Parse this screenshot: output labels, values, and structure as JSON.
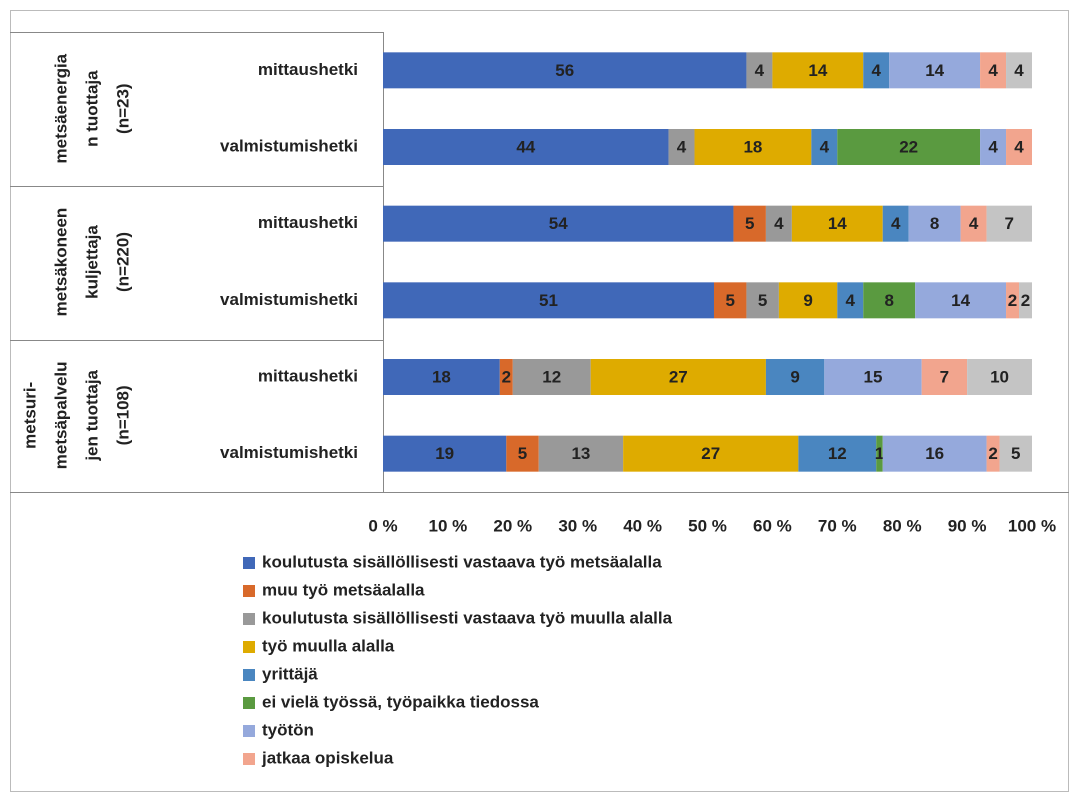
{
  "chart_data": {
    "type": "bar",
    "orientation": "horizontal",
    "stacked": "percent",
    "groups": [
      {
        "label": [
          "metsäenergia",
          "n tuottaja",
          "(n=23)"
        ]
      },
      {
        "label": [
          "metsäkoneen",
          "kuljettaja",
          "(n=220)"
        ]
      },
      {
        "label": [
          "metsuri-",
          "metsäpalvelu",
          "jen tuottaja",
          "(n=108)"
        ]
      }
    ],
    "categories": [
      "mittaushetki",
      "valmistumishetki",
      "mittaushetki",
      "valmistumishetki",
      "mittaushetki",
      "valmistumishetki"
    ],
    "series": [
      {
        "name": "koulutusta sisällöllisesti vastaava työ metsäalalla",
        "color": "#4068b8",
        "values": [
          56,
          44,
          54,
          51,
          18,
          19
        ]
      },
      {
        "name": "muu työ metsäalalla",
        "color": "#d8692a",
        "values": [
          null,
          null,
          5,
          5,
          2,
          5
        ]
      },
      {
        "name": "koulutusta sisällöllisesti vastaava työ muulla alalla",
        "color": "#999999",
        "values": [
          4,
          4,
          4,
          5,
          12,
          13
        ]
      },
      {
        "name": "työ muulla alalla",
        "color": "#deab00",
        "values": [
          14,
          18,
          14,
          9,
          27,
          27
        ]
      },
      {
        "name": "yrittäjä",
        "color": "#4a86c0",
        "values": [
          4,
          4,
          4,
          4,
          9,
          12
        ]
      },
      {
        "name": "ei vielä työssä, työpaikka tiedossa",
        "color": "#5a9a40",
        "values": [
          null,
          22,
          null,
          8,
          null,
          1
        ]
      },
      {
        "name": "työtön",
        "color": "#95a9dc",
        "values": [
          14,
          4,
          8,
          14,
          15,
          16
        ]
      },
      {
        "name": "jatkaa opiskelua",
        "color": "#f2a58e",
        "values": [
          4,
          4,
          4,
          2,
          7,
          2
        ]
      },
      {
        "color": "#c4c4c4",
        "values": [
          4,
          null,
          7,
          2,
          10,
          5
        ]
      }
    ],
    "xlim": [
      0,
      100
    ],
    "xticks": [
      {
        "value": 0,
        "label": "0 %"
      },
      {
        "value": 10,
        "label": "10 %"
      },
      {
        "value": 20,
        "label": "20 %"
      },
      {
        "value": 30,
        "label": "30 %"
      },
      {
        "value": 40,
        "label": "40 %"
      },
      {
        "value": 50,
        "label": "50 %"
      },
      {
        "value": 60,
        "label": "60 %"
      },
      {
        "value": 70,
        "label": "70 %"
      },
      {
        "value": 80,
        "label": "80 %"
      },
      {
        "value": 90,
        "label": "90 %"
      },
      {
        "value": 100,
        "label": "100 %"
      }
    ],
    "legend": "bottom"
  }
}
